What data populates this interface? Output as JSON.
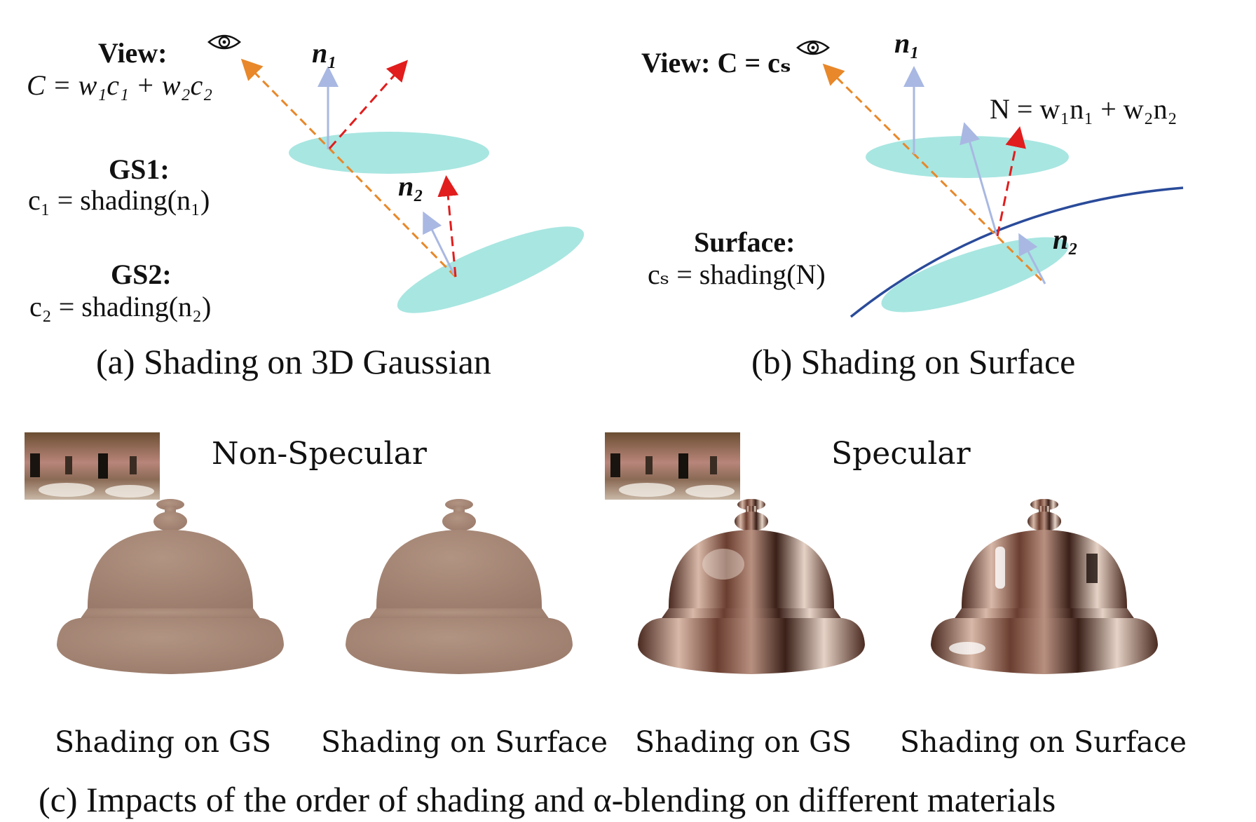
{
  "panel_a": {
    "view_title": "View:",
    "view_eq": "C = w₁c₁ + w₂c₂",
    "gs1_title": "GS1:",
    "gs1_eq": "c₁ = shading(n₁)",
    "gs2_title": "GS2:",
    "gs2_eq": "c₂ = shading(n₂)",
    "n1": "n₁",
    "n2": "n₂",
    "caption": "(a) Shading on 3D Gaussian"
  },
  "panel_b": {
    "view_eq": "View: C = cₛ",
    "normal_eq": "N = w₁n₁ + w₂n₂",
    "surface_title": "Surface:",
    "surface_eq": "cₛ = shading(N)",
    "n1": "n₁",
    "n2": "n₂",
    "caption": "(b) Shading on Surface"
  },
  "panel_c": {
    "label_left": "Non-Specular",
    "label_right": "Specular",
    "bell_labels": [
      "Shading on GS",
      "Shading on Surface",
      "Shading on GS",
      "Shading on Surface"
    ],
    "caption": "(c) Impacts of the order of shading and α-blending on different materials"
  },
  "colors": {
    "gaussian": "#a8e6e1",
    "view_arrow": "#e8882a",
    "normal_arrow": "#a9b8e2",
    "reflect_arrow": "#e11d1d",
    "surface_curve": "#2a4b9a",
    "bell_matte": "#a88876",
    "bell_specular": "#8a5a4a"
  },
  "icons": [
    "eye-icon",
    "eye-icon"
  ]
}
